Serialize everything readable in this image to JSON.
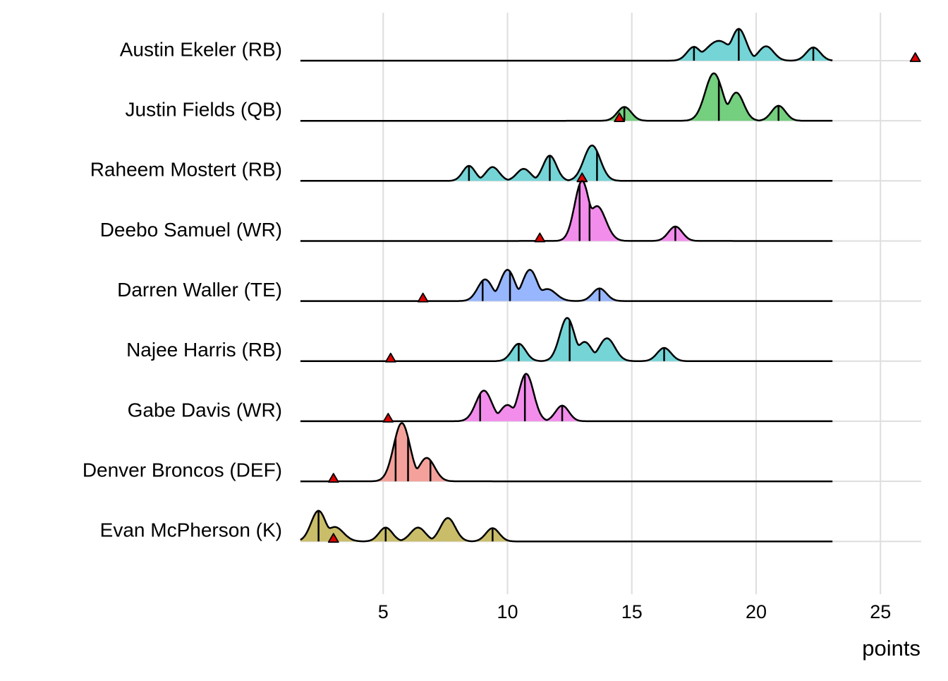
{
  "chart_data": {
    "type": "ridgeline",
    "title": "",
    "xlabel": "points",
    "ylabel": "",
    "xlim": [
      1.67,
      26.4
    ],
    "xticks": [
      5,
      10,
      15,
      20,
      25
    ],
    "xtick_labels": [
      "5",
      "10",
      "15",
      "20",
      "25"
    ],
    "grid": true,
    "density_range": [
      1.67,
      23.07
    ],
    "colors": {
      "RB": "#74D4D6",
      "QB": "#74CF7E",
      "WR": "#F28DEC",
      "TE": "#98B6FD",
      "DEF": "#F5A19B",
      "K": "#CABD6A",
      "marker": "#E00000"
    },
    "series": [
      {
        "name": "Austin Ekeler (RB)",
        "position": "RB",
        "actual": 26.4,
        "quantiles": [
          17.5,
          19.3,
          22.3
        ],
        "peaks": [
          {
            "x": 17.5,
            "h": 0.23,
            "sd": 0.28
          },
          {
            "x": 18.5,
            "h": 0.33,
            "sd": 0.5
          },
          {
            "x": 19.3,
            "h": 0.53,
            "sd": 0.3
          },
          {
            "x": 20.4,
            "h": 0.24,
            "sd": 0.3
          },
          {
            "x": 22.3,
            "h": 0.22,
            "sd": 0.28
          }
        ]
      },
      {
        "name": "Justin Fields (QB)",
        "position": "QB",
        "actual": 14.5,
        "quantiles": [
          14.7,
          18.5,
          20.9
        ],
        "peaks": [
          {
            "x": 14.7,
            "h": 0.23,
            "sd": 0.28
          },
          {
            "x": 18.3,
            "h": 0.79,
            "sd": 0.35
          },
          {
            "x": 19.2,
            "h": 0.47,
            "sd": 0.3
          },
          {
            "x": 20.9,
            "h": 0.25,
            "sd": 0.28
          }
        ]
      },
      {
        "name": "Raheem Mostert (RB)",
        "position": "RB",
        "actual": 13.0,
        "quantiles": [
          8.45,
          11.7,
          13.6
        ],
        "peaks": [
          {
            "x": 8.45,
            "h": 0.25,
            "sd": 0.25
          },
          {
            "x": 9.4,
            "h": 0.23,
            "sd": 0.27
          },
          {
            "x": 10.65,
            "h": 0.2,
            "sd": 0.28
          },
          {
            "x": 11.7,
            "h": 0.42,
            "sd": 0.27
          },
          {
            "x": 13.4,
            "h": 0.59,
            "sd": 0.33
          }
        ]
      },
      {
        "name": "Deebo Samuel (WR)",
        "position": "WR",
        "actual": 11.3,
        "quantiles": [
          12.9,
          13.3,
          16.75
        ],
        "peaks": [
          {
            "x": 13.0,
            "h": 1.0,
            "sd": 0.3
          },
          {
            "x": 13.6,
            "h": 0.58,
            "sd": 0.35
          },
          {
            "x": 16.75,
            "h": 0.24,
            "sd": 0.28
          }
        ]
      },
      {
        "name": "Darren Waller (TE)",
        "position": "TE",
        "actual": 6.6,
        "quantiles": [
          9.0,
          10.1,
          13.7
        ],
        "peaks": [
          {
            "x": 9.1,
            "h": 0.36,
            "sd": 0.3
          },
          {
            "x": 10.0,
            "h": 0.52,
            "sd": 0.3
          },
          {
            "x": 10.9,
            "h": 0.52,
            "sd": 0.3
          },
          {
            "x": 11.6,
            "h": 0.2,
            "sd": 0.35
          },
          {
            "x": 13.7,
            "h": 0.21,
            "sd": 0.28
          }
        ]
      },
      {
        "name": "Najee Harris (RB)",
        "position": "RB",
        "actual": 5.3,
        "quantiles": [
          10.45,
          12.5,
          16.3
        ],
        "peaks": [
          {
            "x": 10.45,
            "h": 0.29,
            "sd": 0.28
          },
          {
            "x": 12.4,
            "h": 0.72,
            "sd": 0.3
          },
          {
            "x": 13.1,
            "h": 0.32,
            "sd": 0.3
          },
          {
            "x": 14.0,
            "h": 0.38,
            "sd": 0.32
          },
          {
            "x": 16.3,
            "h": 0.22,
            "sd": 0.28
          }
        ]
      },
      {
        "name": "Gabe Davis (WR)",
        "position": "WR",
        "actual": 5.2,
        "quantiles": [
          8.9,
          10.7,
          12.2
        ],
        "peaks": [
          {
            "x": 9.05,
            "h": 0.51,
            "sd": 0.32
          },
          {
            "x": 10.0,
            "h": 0.27,
            "sd": 0.3
          },
          {
            "x": 10.75,
            "h": 0.79,
            "sd": 0.3
          },
          {
            "x": 12.2,
            "h": 0.26,
            "sd": 0.27
          }
        ]
      },
      {
        "name": "Denver Broncos (DEF)",
        "position": "DEF",
        "actual": 3.0,
        "quantiles": [
          5.5,
          6.0,
          6.9
        ],
        "peaks": [
          {
            "x": 5.75,
            "h": 0.97,
            "sd": 0.33
          },
          {
            "x": 6.75,
            "h": 0.39,
            "sd": 0.32
          }
        ]
      },
      {
        "name": "Evan McPherson (K)",
        "position": "K",
        "actual": 3.0,
        "quantiles": [
          2.4,
          5.1,
          9.4
        ],
        "peaks": [
          {
            "x": 2.4,
            "h": 0.51,
            "sd": 0.3
          },
          {
            "x": 3.05,
            "h": 0.24,
            "sd": 0.35
          },
          {
            "x": 5.1,
            "h": 0.23,
            "sd": 0.27
          },
          {
            "x": 6.4,
            "h": 0.23,
            "sd": 0.3
          },
          {
            "x": 7.6,
            "h": 0.39,
            "sd": 0.3
          },
          {
            "x": 9.4,
            "h": 0.22,
            "sd": 0.27
          }
        ]
      }
    ]
  }
}
